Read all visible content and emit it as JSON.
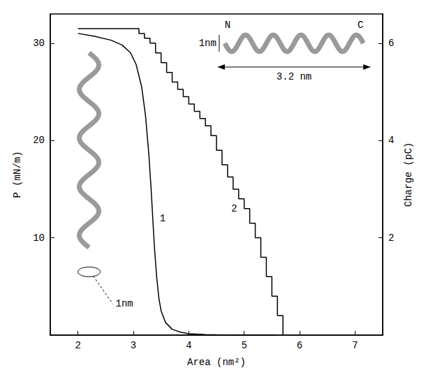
{
  "chart_data": {
    "type": "line",
    "x_label": "Area (nm²)",
    "y_label": "P (mN/m)",
    "y2_label": "Charge (pC)",
    "xlim": [
      1.5,
      7.5
    ],
    "xticks": [
      2,
      3,
      4,
      5,
      6,
      7
    ],
    "ylim": [
      0,
      33
    ],
    "yticks": [
      10,
      20,
      30
    ],
    "y2lim": [
      0,
      6.6
    ],
    "y2ticks": [
      2,
      4,
      6
    ],
    "grid": false,
    "annotations": [
      "N",
      "C",
      "1nm",
      "3.2 nm",
      "1nm"
    ],
    "series": [
      {
        "name": "1",
        "color": "#000000",
        "line_style": "solid",
        "marker": "none",
        "x": [
          2.0,
          2.3,
          2.6,
          2.8,
          2.95,
          3.05,
          3.15,
          3.22,
          3.28,
          3.32,
          3.35,
          3.38,
          3.42,
          3.46,
          3.5,
          3.58,
          3.7,
          3.85,
          4.0,
          4.3,
          4.7,
          5.2,
          5.6
        ],
        "values": [
          31.0,
          30.7,
          30.3,
          29.8,
          29.0,
          27.8,
          25.5,
          22.5,
          18.5,
          15.0,
          12.0,
          9.0,
          6.0,
          3.8,
          2.5,
          1.3,
          0.6,
          0.3,
          0.15,
          0.05,
          0.0,
          0.0,
          0.0
        ]
      },
      {
        "name": "2",
        "color": "#000000",
        "line_style": "steps",
        "marker": "none",
        "axis": "y2",
        "x": [
          2.0,
          2.5,
          3.0,
          3.1,
          3.2,
          3.3,
          3.4,
          3.5,
          3.6,
          3.7,
          3.8,
          3.9,
          4.0,
          4.1,
          4.2,
          4.3,
          4.4,
          4.5,
          4.6,
          4.7,
          4.8,
          4.9,
          5.0,
          5.1,
          5.2,
          5.3,
          5.4,
          5.5,
          5.6,
          5.7
        ],
        "values": [
          6.3,
          6.3,
          6.3,
          6.2,
          6.1,
          6.0,
          5.8,
          5.6,
          5.4,
          5.2,
          5.05,
          4.9,
          4.75,
          4.6,
          4.45,
          4.3,
          4.1,
          3.8,
          3.5,
          3.25,
          3.0,
          2.8,
          2.6,
          2.3,
          2.0,
          1.6,
          1.2,
          0.8,
          0.4,
          0.0
        ]
      }
    ]
  }
}
